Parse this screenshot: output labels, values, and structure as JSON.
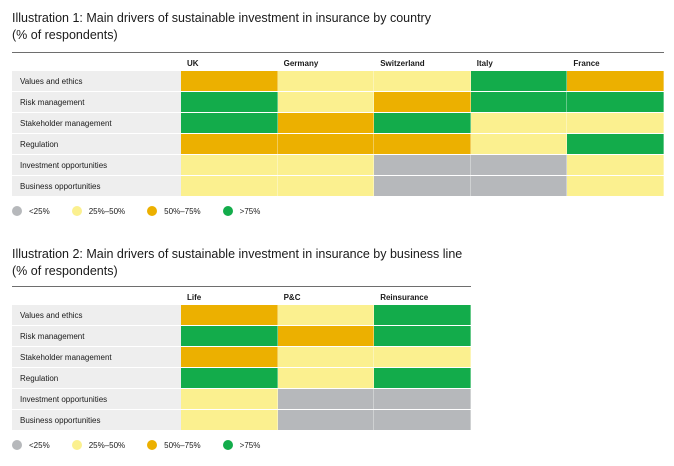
{
  "colors": {
    "lt25": "#b6b8bb",
    "25-50": "#fbf08f",
    "50-75": "#ecb000",
    "gt75": "#13ac4b"
  },
  "legend": [
    {
      "key": "lt25",
      "label": "<25%"
    },
    {
      "key": "25-50",
      "label": "25%–50%"
    },
    {
      "key": "50-75",
      "label": "50%–75%"
    },
    {
      "key": "gt75",
      "label": ">75%"
    }
  ],
  "chart_data": [
    {
      "type": "heatmap",
      "title": "Illustration 1: Main drivers of sustainable investment in insurance by country",
      "subtitle": "(% of respondents)",
      "columns": [
        "UK",
        "Germany",
        "Switzerland",
        "Italy",
        "France"
      ],
      "rows": [
        "Values and ethics",
        "Risk management",
        "Stakeholder management",
        "Regulation",
        "Investment opportunities",
        "Business opportunities"
      ],
      "values": [
        [
          "50-75",
          "25-50",
          "25-50",
          "gt75",
          "50-75"
        ],
        [
          "gt75",
          "25-50",
          "50-75",
          "gt75",
          "gt75"
        ],
        [
          "gt75",
          "50-75",
          "gt75",
          "25-50",
          "25-50"
        ],
        [
          "50-75",
          "50-75",
          "50-75",
          "25-50",
          "gt75"
        ],
        [
          "25-50",
          "25-50",
          "lt25",
          "lt25",
          "25-50"
        ],
        [
          "25-50",
          "25-50",
          "lt25",
          "lt25",
          "25-50"
        ]
      ]
    },
    {
      "type": "heatmap",
      "title": "Illustration 2: Main drivers of sustainable investment in insurance by business line",
      "subtitle": "(% of respondents)",
      "columns": [
        "Life",
        "P&C",
        "Reinsurance"
      ],
      "rows": [
        "Values and ethics",
        "Risk management",
        "Stakeholder management",
        "Regulation",
        "Investment opportunities",
        "Business opportunities"
      ],
      "values": [
        [
          "50-75",
          "25-50",
          "gt75"
        ],
        [
          "gt75",
          "50-75",
          "gt75"
        ],
        [
          "50-75",
          "25-50",
          "25-50"
        ],
        [
          "gt75",
          "25-50",
          "gt75"
        ],
        [
          "25-50",
          "lt25",
          "lt25"
        ],
        [
          "25-50",
          "lt25",
          "lt25"
        ]
      ]
    }
  ]
}
